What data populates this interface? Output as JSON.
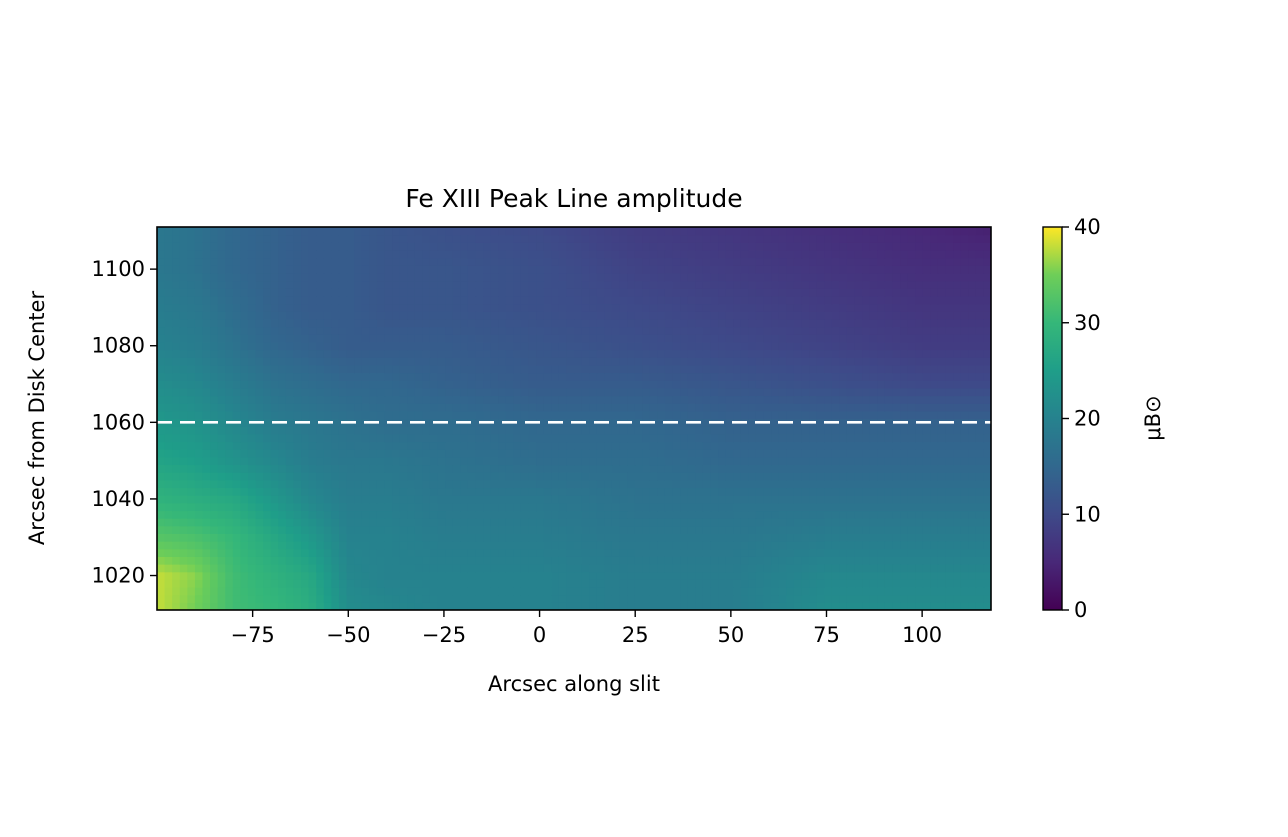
{
  "chart_data": {
    "type": "heatmap",
    "title": "Fe XIII Peak Line amplitude",
    "xlabel": "Arcsec along slit",
    "ylabel": "Arcsec from Disk Center",
    "xlim": [
      -100,
      118
    ],
    "ylim": [
      1011,
      1111
    ],
    "x_ticks": [
      -75,
      -50,
      -25,
      0,
      25,
      50,
      75,
      100
    ],
    "x_tick_labels": [
      "−75",
      "−50",
      "−25",
      "0",
      "25",
      "50",
      "75",
      "100"
    ],
    "y_ticks": [
      1020,
      1040,
      1060,
      1080,
      1100
    ],
    "y_tick_labels": [
      "1020",
      "1040",
      "1060",
      "1080",
      "1100"
    ],
    "colorbar": {
      "label": "μB⊙",
      "range": [
        0,
        40
      ],
      "ticks": [
        0,
        10,
        20,
        30,
        40
      ],
      "tick_labels": [
        "0",
        "10",
        "20",
        "30",
        "40"
      ],
      "colormap": "viridis"
    },
    "reference_line": {
      "y": 1060,
      "style": "dashed",
      "color": "#ffffff"
    },
    "grid": false,
    "value_field": {
      "x_samples": [
        -100,
        -90,
        -80,
        -70,
        -60,
        -50,
        -40,
        -25,
        0,
        25,
        50,
        75,
        100,
        118
      ],
      "y_samples": [
        1011,
        1020,
        1030,
        1040,
        1050,
        1060,
        1070,
        1080,
        1090,
        1100,
        1111
      ],
      "values": [
        [
          38,
          35,
          31,
          30,
          28,
          22,
          21,
          20,
          20,
          19,
          19,
          22,
          22,
          22
        ],
        [
          38,
          36,
          31,
          29,
          27,
          21,
          20,
          20,
          20,
          19,
          19,
          21,
          21,
          21
        ],
        [
          33,
          32,
          30,
          27,
          24,
          20,
          20,
          19,
          19,
          18,
          18,
          19,
          19,
          19
        ],
        [
          29,
          28,
          27,
          24,
          21,
          19,
          19,
          18,
          18,
          17,
          17,
          17,
          17,
          17
        ],
        [
          26,
          25,
          23,
          21,
          19,
          18,
          18,
          17,
          16,
          16,
          15,
          15,
          15,
          15
        ],
        [
          24,
          23,
          21,
          19,
          18,
          17,
          16,
          16,
          15,
          15,
          14,
          14,
          14,
          14
        ],
        [
          22,
          21,
          19,
          17,
          16,
          15,
          15,
          14,
          13,
          13,
          12,
          11,
          10,
          10
        ],
        [
          20,
          19,
          17,
          15,
          14,
          13,
          13,
          13,
          12,
          11,
          10,
          9,
          8,
          8
        ],
        [
          19,
          18,
          16,
          14,
          13,
          13,
          12,
          12,
          11,
          10,
          9,
          8,
          7,
          7
        ],
        [
          18,
          17,
          15,
          14,
          13,
          13,
          12,
          12,
          11,
          9,
          8,
          7,
          6,
          6
        ],
        [
          18,
          17,
          15,
          14,
          13,
          13,
          12,
          11,
          10,
          8,
          7,
          6,
          5,
          4
        ]
      ]
    }
  }
}
